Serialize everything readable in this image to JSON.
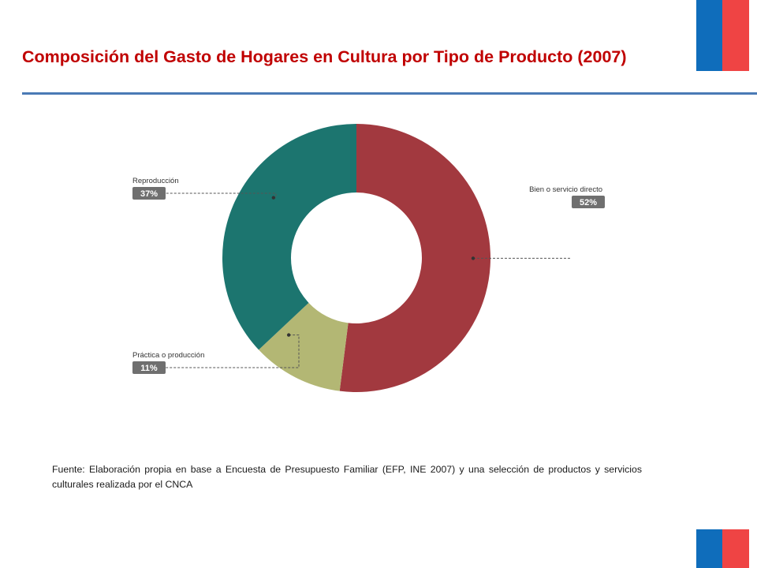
{
  "header": {
    "title": "Composición del Gasto de Hogares en Cultura por Tipo de Producto (2007)",
    "title_color": "#c00000",
    "rule_color": "#4a7ab5"
  },
  "flag": {
    "blue": "#0f6dbb",
    "red": "#ef4444"
  },
  "chart_data": {
    "type": "pie",
    "variant": "donut",
    "title": "",
    "slices": [
      {
        "label": "Bien o servicio directo",
        "value": 52,
        "value_label": "52%",
        "color": "#a2393f"
      },
      {
        "label": "Práctica o producción",
        "value": 11,
        "value_label": "11%",
        "color": "#b3b774"
      },
      {
        "label": "Reproducción",
        "value": 37,
        "value_label": "37%",
        "color": "#1c756f"
      }
    ],
    "label_badge_color": "#6f6f6f"
  },
  "footer": {
    "source": "Fuente: Elaboración propia en base a Encuesta de Presupuesto Familiar (EFP, INE 2007) y una selección de productos y servicios culturales realizada por el CNCA"
  }
}
